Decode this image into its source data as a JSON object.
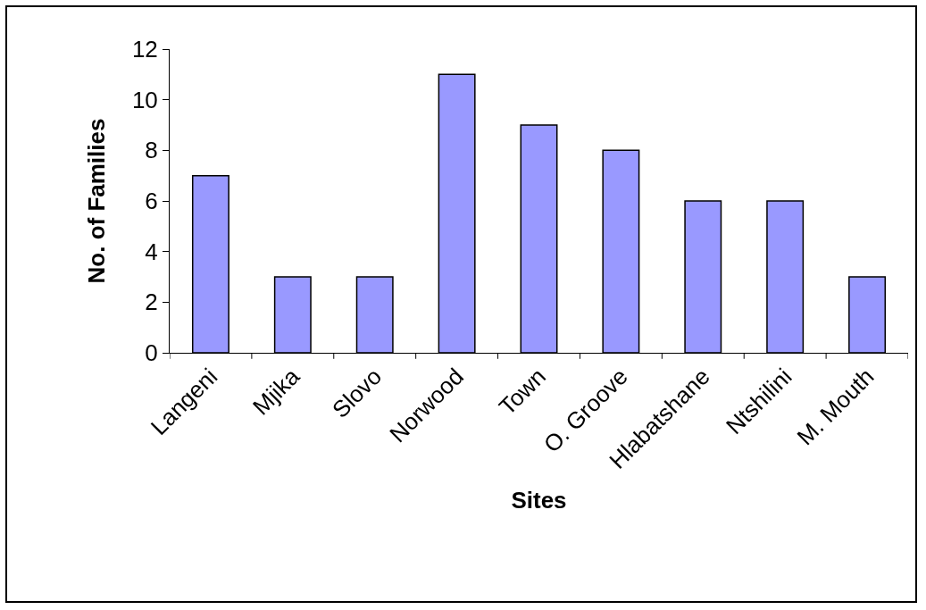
{
  "chart_data": {
    "type": "bar",
    "xlabel": "Sites",
    "ylabel": "No. of Families",
    "categories": [
      "Langeni",
      "Mjika",
      "Slovo",
      "Norwood",
      "Town",
      "O. Groove",
      "Hlabatshane",
      "Ntshilini",
      "M. Mouth"
    ],
    "values": [
      7,
      3,
      3,
      11,
      9,
      8,
      6,
      6,
      3
    ],
    "color": "#9999ff",
    "ylim": [
      0,
      12
    ],
    "yticks": [
      0,
      2,
      4,
      6,
      8,
      10,
      12
    ],
    "grid": false
  }
}
